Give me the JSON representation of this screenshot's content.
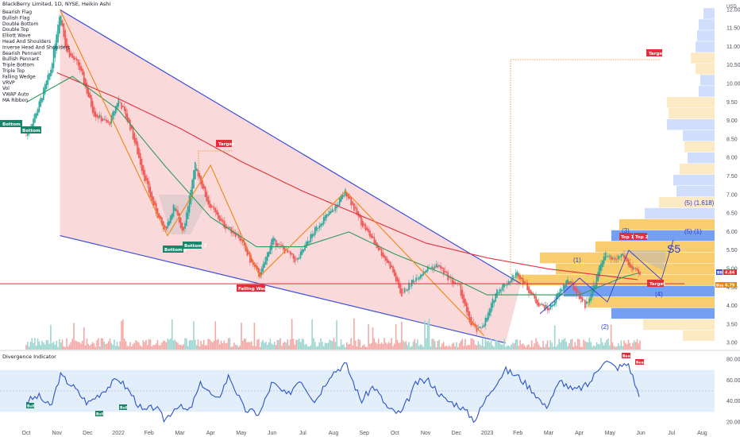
{
  "header": {
    "symbol_line": "BlackBerry Limited, 1D, NYSE, Heikin Ashi"
  },
  "indicator_legend": [
    "Bearish Flag",
    "Bullish Flag",
    "Double Bottom",
    "Double Top",
    "Elliott Wave",
    "Head And Shoulders",
    "Inverse Head And Shoulders",
    "Bearish Pennant",
    "Bullish Pennant",
    "Triple Bottom",
    "Triple Top",
    "Falling Wedge",
    "VRVP",
    "Vol",
    "VWAP Auto",
    "MA Ribbon"
  ],
  "colors": {
    "wedge_fill": "#f8c9cc",
    "wedge_line": "#3b4fd8",
    "zigzag": "#f0850f",
    "up_candle": "#26a69a",
    "down_candle": "#ef5350",
    "ma_green": "#2e9a5e",
    "ma_red": "#e0303a",
    "rsi_line": "#2a53c7",
    "rsi_band": "#e3eefb",
    "vp_yellow": "#f6c453",
    "vp_blue": "#5d8ef0",
    "label_red": "#e0303a",
    "label_green": "#17866a"
  },
  "annotations": {
    "bottom1_left": "Bottom 1",
    "bottom2_left": "Bottom 2",
    "bottom1_mid": "Bottom 1",
    "bottom2_mid": "Bottom 2",
    "target_mid": "Target",
    "target_top": "Target",
    "target_right": "Target",
    "falling_wedge": "Falling Wedge",
    "top1": "Top 1",
    "top2": "Top 2",
    "wave_1": "(1)",
    "wave_2": "(2)",
    "wave_3": "(3)",
    "wave_4": "(4)",
    "wave_5_1": "(5) (1)",
    "wave_5_1618": "(5) (1.618)",
    "s5": "S5"
  },
  "price_tags": {
    "tag1_prefix": "BB",
    "tag1_value": "4.84",
    "tag2_prefix": "Buy",
    "tag2_value": "4.79"
  },
  "indicator_panel": {
    "title": "Divergence Indicator",
    "bull_labels": [
      "Bull",
      "Bull",
      "Bull"
    ],
    "bear_labels": [
      "Bear",
      "Bear"
    ],
    "y_ticks": [
      "80.00",
      "60.00",
      "40.00",
      "20.00"
    ]
  },
  "chart_data": {
    "type": "candlestick",
    "title": "BlackBerry Limited, 1D, NYSE, Heikin Ashi",
    "currency": "USD",
    "x_tick_labels": [
      "Oct",
      "Nov",
      "Dec",
      "2022",
      "Feb",
      "Mar",
      "Apr",
      "May",
      "Jun",
      "Jul",
      "Aug",
      "Sep",
      "Oct",
      "Nov",
      "Dec",
      "2023",
      "Feb",
      "Mar",
      "Apr",
      "May",
      "Jun",
      "Jul",
      "Aug"
    ],
    "y_ticks": [
      12.0,
      11.5,
      11.0,
      10.5,
      10.0,
      9.5,
      9.0,
      8.5,
      8.0,
      7.5,
      7.0,
      6.5,
      6.0,
      5.5,
      5.0,
      4.5,
      4.0,
      3.5,
      3.0
    ],
    "ylim": [
      2.8,
      12.2
    ],
    "price_path_key_points": [
      {
        "month_index": 0.0,
        "close": 8.6
      },
      {
        "month_index": 0.4,
        "close": 9.4
      },
      {
        "month_index": 0.8,
        "close": 10.4
      },
      {
        "month_index": 1.1,
        "close": 12.0
      },
      {
        "month_index": 1.3,
        "close": 10.9
      },
      {
        "month_index": 1.7,
        "close": 10.5
      },
      {
        "month_index": 2.2,
        "close": 9.2
      },
      {
        "month_index": 2.7,
        "close": 8.9
      },
      {
        "month_index": 3.0,
        "close": 9.6
      },
      {
        "month_index": 3.4,
        "close": 8.8
      },
      {
        "month_index": 3.8,
        "close": 7.6
      },
      {
        "month_index": 4.1,
        "close": 6.8
      },
      {
        "month_index": 4.5,
        "close": 6.0
      },
      {
        "month_index": 4.8,
        "close": 6.7
      },
      {
        "month_index": 5.1,
        "close": 6.0
      },
      {
        "month_index": 5.5,
        "close": 7.8
      },
      {
        "month_index": 5.9,
        "close": 6.8
      },
      {
        "month_index": 6.4,
        "close": 6.2
      },
      {
        "month_index": 6.9,
        "close": 5.9
      },
      {
        "month_index": 7.3,
        "close": 5.2
      },
      {
        "month_index": 7.6,
        "close": 4.8
      },
      {
        "month_index": 8.0,
        "close": 5.8
      },
      {
        "month_index": 8.4,
        "close": 5.5
      },
      {
        "month_index": 8.8,
        "close": 5.2
      },
      {
        "month_index": 9.2,
        "close": 5.8
      },
      {
        "month_index": 9.6,
        "close": 6.3
      },
      {
        "month_index": 10.0,
        "close": 6.6
      },
      {
        "month_index": 10.4,
        "close": 7.1
      },
      {
        "month_index": 10.8,
        "close": 6.4
      },
      {
        "month_index": 11.1,
        "close": 6.0
      },
      {
        "month_index": 11.5,
        "close": 5.5
      },
      {
        "month_index": 11.9,
        "close": 5.0
      },
      {
        "month_index": 12.2,
        "close": 4.3
      },
      {
        "month_index": 12.6,
        "close": 4.7
      },
      {
        "month_index": 13.0,
        "close": 5.0
      },
      {
        "month_index": 13.4,
        "close": 5.1
      },
      {
        "month_index": 13.8,
        "close": 4.7
      },
      {
        "month_index": 14.1,
        "close": 4.5
      },
      {
        "month_index": 14.4,
        "close": 3.6
      },
      {
        "month_index": 14.7,
        "close": 3.3
      },
      {
        "month_index": 15.0,
        "close": 3.7
      },
      {
        "month_index": 15.3,
        "close": 4.4
      },
      {
        "month_index": 15.6,
        "close": 4.6
      },
      {
        "month_index": 16.0,
        "close": 4.9
      },
      {
        "month_index": 16.3,
        "close": 4.5
      },
      {
        "month_index": 16.6,
        "close": 4.1
      },
      {
        "month_index": 17.0,
        "close": 3.9
      },
      {
        "month_index": 17.3,
        "close": 4.3
      },
      {
        "month_index": 17.6,
        "close": 4.7
      },
      {
        "month_index": 17.9,
        "close": 4.4
      },
      {
        "month_index": 18.2,
        "close": 4.0
      },
      {
        "month_index": 18.5,
        "close": 4.6
      },
      {
        "month_index": 18.8,
        "close": 5.4
      },
      {
        "month_index": 19.1,
        "close": 5.2
      },
      {
        "month_index": 19.4,
        "close": 5.4
      },
      {
        "month_index": 19.7,
        "close": 5.0
      },
      {
        "month_index": 20.0,
        "close": 4.8
      }
    ],
    "ma_green_key_points": [
      {
        "month_index": 0.0,
        "value": 9.5
      },
      {
        "month_index": 1.5,
        "value": 10.2
      },
      {
        "month_index": 3.0,
        "value": 9.3
      },
      {
        "month_index": 4.5,
        "value": 7.8
      },
      {
        "month_index": 6.0,
        "value": 6.4
      },
      {
        "month_index": 7.5,
        "value": 5.6
      },
      {
        "month_index": 9.0,
        "value": 5.6
      },
      {
        "month_index": 10.5,
        "value": 6.0
      },
      {
        "month_index": 12.0,
        "value": 5.4
      },
      {
        "month_index": 13.5,
        "value": 4.9
      },
      {
        "month_index": 15.0,
        "value": 4.3
      },
      {
        "month_index": 16.5,
        "value": 4.3
      },
      {
        "month_index": 18.0,
        "value": 4.3
      },
      {
        "month_index": 19.5,
        "value": 4.8
      },
      {
        "month_index": 20.0,
        "value": 4.9
      }
    ],
    "ma_red_key_points": [
      {
        "month_index": 1.0,
        "value": 10.3
      },
      {
        "month_index": 3.0,
        "value": 9.6
      },
      {
        "month_index": 5.0,
        "value": 8.8
      },
      {
        "month_index": 7.0,
        "value": 7.9
      },
      {
        "month_index": 9.0,
        "value": 7.1
      },
      {
        "month_index": 11.0,
        "value": 6.4
      },
      {
        "month_index": 13.0,
        "value": 5.7
      },
      {
        "month_index": 15.0,
        "value": 5.3
      },
      {
        "month_index": 17.0,
        "value": 5.0
      },
      {
        "month_index": 19.0,
        "value": 4.8
      },
      {
        "month_index": 20.0,
        "value": 4.7
      }
    ],
    "falling_wedge": {
      "upper": [
        {
          "month_index": 1.1,
          "value": 12.0
        },
        {
          "month_index": 16.1,
          "value": 4.6
        }
      ],
      "lower": [
        {
          "month_index": 1.1,
          "value": 5.9
        },
        {
          "month_index": 15.6,
          "value": 3.0
        }
      ]
    },
    "zigzag_key_points": [
      {
        "month_index": 1.1,
        "value": 12.0
      },
      {
        "month_index": 4.6,
        "value": 5.9
      },
      {
        "month_index": 6.0,
        "value": 7.8
      },
      {
        "month_index": 7.6,
        "value": 4.8
      },
      {
        "month_index": 10.4,
        "value": 7.1
      },
      {
        "month_index": 14.9,
        "value": 3.2
      }
    ],
    "horizontal_levels": [
      {
        "name": "support",
        "value": 4.6
      }
    ],
    "rsi_panel": {
      "ylim": [
        15,
        85
      ],
      "band": [
        30,
        70
      ],
      "key_points": [
        {
          "month_index": 0.0,
          "value": 40
        },
        {
          "month_index": 0.4,
          "value": 45
        },
        {
          "month_index": 0.8,
          "value": 34
        },
        {
          "month_index": 1.1,
          "value": 65
        },
        {
          "month_index": 1.5,
          "value": 55
        },
        {
          "month_index": 2.0,
          "value": 38
        },
        {
          "month_index": 2.5,
          "value": 50
        },
        {
          "month_index": 3.0,
          "value": 62
        },
        {
          "month_index": 3.4,
          "value": 48
        },
        {
          "month_index": 3.8,
          "value": 30
        },
        {
          "month_index": 4.2,
          "value": 35
        },
        {
          "month_index": 4.5,
          "value": 22
        },
        {
          "month_index": 4.9,
          "value": 36
        },
        {
          "month_index": 5.3,
          "value": 30
        },
        {
          "month_index": 5.7,
          "value": 58
        },
        {
          "month_index": 6.2,
          "value": 40
        },
        {
          "month_index": 6.6,
          "value": 65
        },
        {
          "month_index": 7.1,
          "value": 32
        },
        {
          "month_index": 7.6,
          "value": 28
        },
        {
          "month_index": 8.0,
          "value": 58
        },
        {
          "month_index": 8.5,
          "value": 45
        },
        {
          "month_index": 8.9,
          "value": 62
        },
        {
          "month_index": 9.4,
          "value": 40
        },
        {
          "month_index": 9.9,
          "value": 66
        },
        {
          "month_index": 10.4,
          "value": 76
        },
        {
          "month_index": 10.9,
          "value": 40
        },
        {
          "month_index": 11.3,
          "value": 55
        },
        {
          "month_index": 11.8,
          "value": 32
        },
        {
          "month_index": 12.2,
          "value": 28
        },
        {
          "month_index": 12.7,
          "value": 58
        },
        {
          "month_index": 13.1,
          "value": 60
        },
        {
          "month_index": 13.6,
          "value": 42
        },
        {
          "month_index": 14.1,
          "value": 36
        },
        {
          "month_index": 14.6,
          "value": 22
        },
        {
          "month_index": 15.1,
          "value": 50
        },
        {
          "month_index": 15.6,
          "value": 70
        },
        {
          "month_index": 16.0,
          "value": 64
        },
        {
          "month_index": 16.5,
          "value": 50
        },
        {
          "month_index": 16.9,
          "value": 34
        },
        {
          "month_index": 17.4,
          "value": 60
        },
        {
          "month_index": 17.8,
          "value": 50
        },
        {
          "month_index": 18.3,
          "value": 56
        },
        {
          "month_index": 18.8,
          "value": 80
        },
        {
          "month_index": 19.2,
          "value": 72
        },
        {
          "month_index": 19.6,
          "value": 76
        },
        {
          "month_index": 20.0,
          "value": 40
        }
      ]
    }
  }
}
